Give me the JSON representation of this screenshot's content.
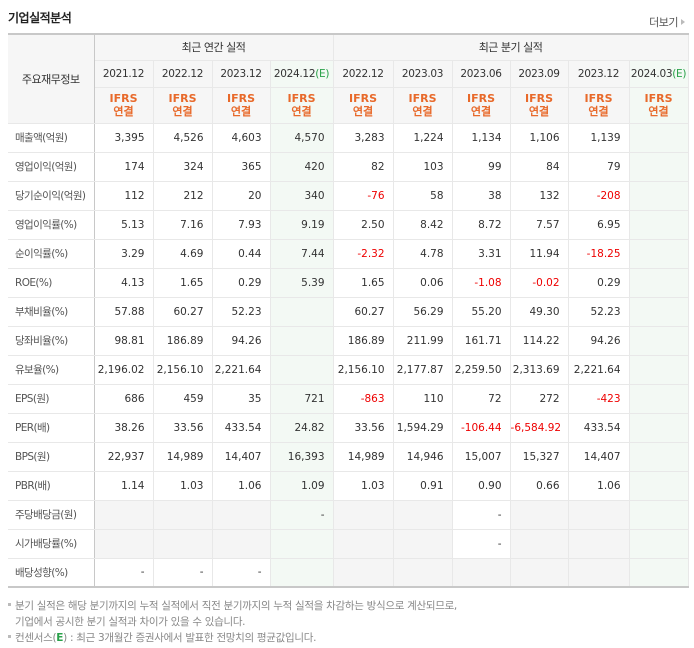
{
  "title": "기업실적분석",
  "more_label": "더보기",
  "header": {
    "row_label": "주요재무정보",
    "groups": [
      {
        "label": "최근 연간 실적"
      },
      {
        "label": "최근 분기 실적"
      }
    ],
    "periods": [
      {
        "label": "2021.12",
        "estimate": false
      },
      {
        "label": "2022.12",
        "estimate": false
      },
      {
        "label": "2023.12",
        "estimate": false
      },
      {
        "label": "2024.12",
        "estimate": true
      },
      {
        "label": "2022.12",
        "estimate": false
      },
      {
        "label": "2023.03",
        "estimate": false
      },
      {
        "label": "2023.06",
        "estimate": false
      },
      {
        "label": "2023.09",
        "estimate": false
      },
      {
        "label": "2023.12",
        "estimate": false
      },
      {
        "label": "2024.03",
        "estimate": true
      }
    ],
    "estimate_mark": "(E)",
    "ifrs_line1": "IFRS",
    "ifrs_line2": "연결"
  },
  "rows": [
    {
      "label": "매출액(억원)",
      "values": [
        "3,395",
        "4,526",
        "4,603",
        "4,570",
        "3,283",
        "1,224",
        "1,134",
        "1,106",
        "1,139",
        ""
      ]
    },
    {
      "label": "영업이익(억원)",
      "values": [
        "174",
        "324",
        "365",
        "420",
        "82",
        "103",
        "99",
        "84",
        "79",
        ""
      ]
    },
    {
      "label": "당기순이익(억원)",
      "values": [
        "112",
        "212",
        "20",
        "340",
        "-76",
        "58",
        "38",
        "132",
        "-208",
        ""
      ]
    },
    {
      "label": "영업이익률(%)",
      "values": [
        "5.13",
        "7.16",
        "7.93",
        "9.19",
        "2.50",
        "8.42",
        "8.72",
        "7.57",
        "6.95",
        ""
      ]
    },
    {
      "label": "순이익률(%)",
      "values": [
        "3.29",
        "4.69",
        "0.44",
        "7.44",
        "-2.32",
        "4.78",
        "3.31",
        "11.94",
        "-18.25",
        ""
      ]
    },
    {
      "label": "ROE(%)",
      "values": [
        "4.13",
        "1.65",
        "0.29",
        "5.39",
        "1.65",
        "0.06",
        "-1.08",
        "-0.02",
        "0.29",
        ""
      ]
    },
    {
      "label": "부채비율(%)",
      "values": [
        "57.88",
        "60.27",
        "52.23",
        "",
        "60.27",
        "56.29",
        "55.20",
        "49.30",
        "52.23",
        ""
      ]
    },
    {
      "label": "당좌비율(%)",
      "values": [
        "98.81",
        "186.89",
        "94.26",
        "",
        "186.89",
        "211.99",
        "161.71",
        "114.22",
        "94.26",
        ""
      ]
    },
    {
      "label": "유보율(%)",
      "values": [
        "2,196.02",
        "2,156.10",
        "2,221.64",
        "",
        "2,156.10",
        "2,177.87",
        "2,259.50",
        "2,313.69",
        "2,221.64",
        ""
      ]
    },
    {
      "label": "EPS(원)",
      "values": [
        "686",
        "459",
        "35",
        "721",
        "-863",
        "110",
        "72",
        "272",
        "-423",
        ""
      ]
    },
    {
      "label": "PER(배)",
      "values": [
        "38.26",
        "33.56",
        "433.54",
        "24.82",
        "33.56",
        "1,594.29",
        "-106.44",
        "-6,584.92",
        "433.54",
        ""
      ]
    },
    {
      "label": "BPS(원)",
      "values": [
        "22,937",
        "14,989",
        "14,407",
        "16,393",
        "14,989",
        "14,946",
        "15,007",
        "15,327",
        "14,407",
        ""
      ]
    },
    {
      "label": "PBR(배)",
      "values": [
        "1.14",
        "1.03",
        "1.06",
        "1.09",
        "1.03",
        "0.91",
        "0.90",
        "0.66",
        "1.06",
        ""
      ]
    },
    {
      "label": "주당배당금(원)",
      "values": [
        "",
        "",
        "",
        "-",
        "",
        "",
        "-",
        "",
        "",
        ""
      ]
    },
    {
      "label": "시가배당률(%)",
      "values": [
        "",
        "",
        "",
        "",
        "",
        "",
        "-",
        "",
        "",
        ""
      ]
    },
    {
      "label": "배당성향(%)",
      "values": [
        "-",
        "-",
        "-",
        "",
        "",
        "",
        "",
        "",
        "",
        ""
      ]
    }
  ],
  "notes": {
    "line1": "분기 실적은 해당 분기까지의 누적 실적에서 직전 분기까지의 누적 실적을 차감하는 방식으로 계산되므로,",
    "line2": "기업에서 공시한 분기 실적과 차이가 있을 수 있습니다.",
    "line3_prefix": "컨센서스(",
    "line3_e": "E",
    "line3_suffix": ") : 최근 3개월간 증권사에서 발표한 전망치의 평균값입니다."
  },
  "colors": {
    "negative": "#e00000",
    "ifrs": "#e8692a",
    "estimate_bg": "#f3f9f4",
    "estimate_mark": "#2aa24a",
    "header_bg": "#f6f6f6"
  }
}
